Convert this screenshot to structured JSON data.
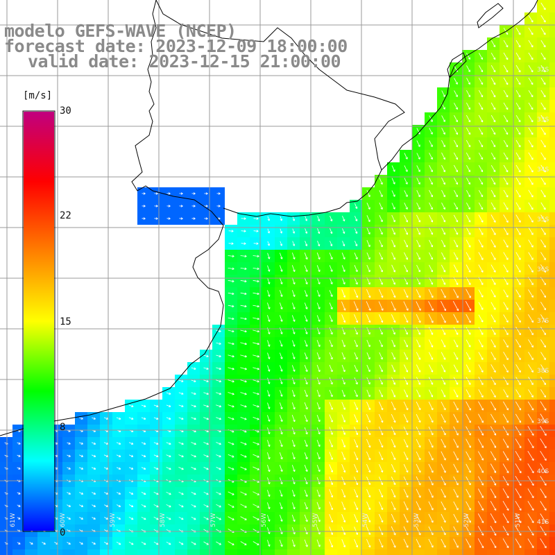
{
  "title": {
    "model": "modelo GEFS-WAVE (NCEP)",
    "forecast": "forecast date: 2023-12-09 18:00:00",
    "valid": "valid date: 2023-12-15 21:00:00"
  },
  "colorbar": {
    "unit": "[m/s]",
    "ticks": [
      "30",
      "22",
      "15",
      "8",
      "0"
    ],
    "tick_values": [
      30,
      22,
      15,
      8,
      0
    ],
    "range": [
      0,
      30
    ],
    "colors": [
      "#0000ff",
      "#00ffff",
      "#00ff00",
      "#ffff00",
      "#ff7f00",
      "#ff0000",
      "#c0007f"
    ]
  },
  "map": {
    "variable": "wind speed",
    "lat_labels": [
      "32S",
      "33S",
      "34S",
      "35S",
      "36S",
      "37S",
      "38S",
      "39S",
      "40S",
      "41S"
    ],
    "lon_labels": [
      "61W",
      "60W",
      "59W",
      "58W",
      "57W",
      "56W",
      "55W",
      "54W",
      "53W",
      "52W",
      "51W"
    ],
    "colors": {
      "land": "#ffffff",
      "coast": "#000000",
      "grid": "#999999",
      "arrow": "#ffffff"
    }
  }
}
